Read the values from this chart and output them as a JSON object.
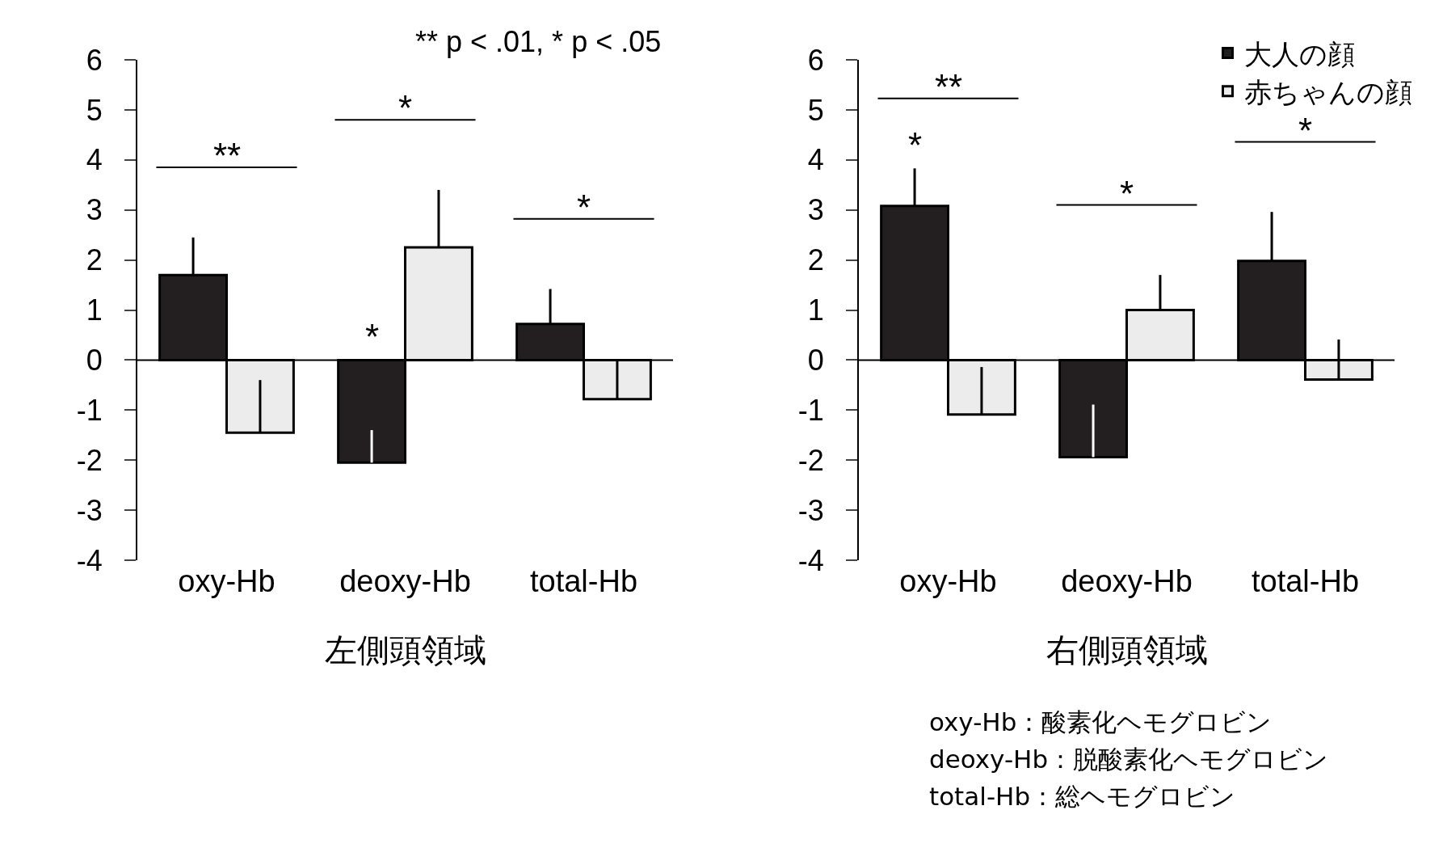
{
  "chart_data": [
    {
      "type": "bar",
      "subtitle": "** p < .01, * p < .05",
      "xlabel": "左側頭領域",
      "categories": [
        "oxy-Hb",
        "deoxy-Hb",
        "total-Hb"
      ],
      "series": [
        {
          "color": "#231f20",
          "values": [
            1.7,
            -2.05,
            0.72
          ],
          "errors": [
            [
              1.7,
              2.45
            ],
            [
              -2.05,
              -1.4
            ],
            [
              0.72,
              1.42
            ]
          ],
          "value_labels": [
            null,
            "*",
            null
          ]
        },
        {
          "color": "#ececec",
          "values": [
            -1.45,
            2.25,
            -0.78
          ],
          "errors": [
            [
              -1.45,
              -0.4
            ],
            [
              2.25,
              3.4
            ],
            [
              -0.78,
              0
            ]
          ]
        }
      ],
      "ylim": [
        -4,
        6
      ],
      "yticks": [
        -4,
        -3,
        -2,
        -1,
        0,
        1,
        2,
        3,
        4,
        5,
        6
      ],
      "legend": false,
      "ref_lines": [
        {
          "axis": "y",
          "value": 0,
          "color": "#000000"
        }
      ],
      "annotations": [
        "**",
        "*",
        "*"
      ]
    },
    {
      "type": "bar",
      "xlabel": "右側頭領域",
      "categories": [
        "oxy-Hb",
        "deoxy-Hb",
        "total-Hb"
      ],
      "series": [
        {
          "name": "大人の顔",
          "color": "#231f20",
          "values": [
            3.08,
            -1.94,
            1.98
          ],
          "errors": [
            [
              3.08,
              3.83
            ],
            [
              -1.94,
              -0.89
            ],
            [
              1.98,
              2.96
            ]
          ],
          "value_labels": [
            "*",
            null,
            null
          ]
        },
        {
          "name": "赤ちゃんの顔",
          "color": "#ececec",
          "values": [
            -1.09,
            1.0,
            -0.39
          ],
          "errors": [
            [
              -1.09,
              -0.14
            ],
            [
              1.0,
              1.7
            ],
            [
              -0.39,
              0.41
            ]
          ]
        }
      ],
      "ylim": [
        -4,
        6
      ],
      "yticks": [
        -4,
        -3,
        -2,
        -1,
        0,
        1,
        2,
        3,
        4,
        5,
        6
      ],
      "legend": "top right",
      "ref_lines": [
        {
          "axis": "y",
          "value": 0,
          "color": "#000000"
        }
      ],
      "annotations": [
        "**",
        "*",
        "*"
      ]
    },
    {
      "type": "other",
      "annotations": [
        "oxy-Hb：酸素化ヘモグロビン",
        "deoxy-Hb：脱酸素化ヘモグロビン",
        "total-Hb：総ヘモグロビン"
      ]
    }
  ]
}
